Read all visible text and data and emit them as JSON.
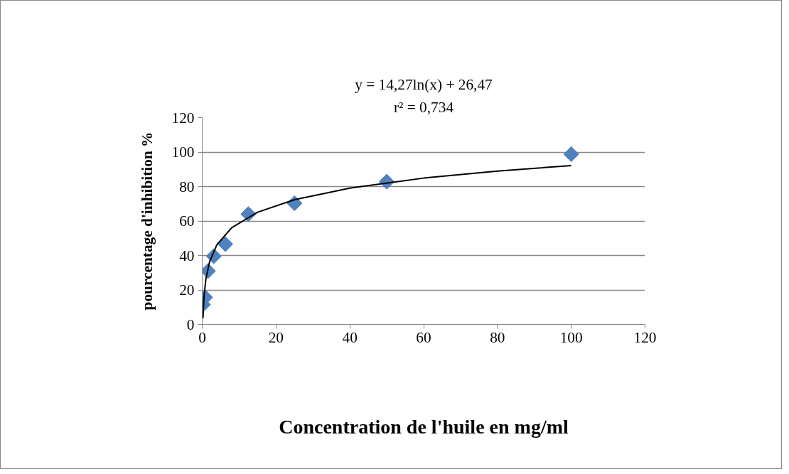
{
  "chart_data": {
    "type": "scatter",
    "xlabel": "Concentration de l'huile en mg/ml",
    "ylabel": "pourcentage d'inhibition %",
    "annotations": [
      "y = 14,27ln(x) + 26,47",
      "r² = 0,734"
    ],
    "series": [
      {
        "color": "#4f81bd",
        "marker": "diamond",
        "x": [
          0.2,
          0.78,
          1.56,
          3.125,
          6.25,
          12.5,
          25,
          50,
          100
        ],
        "values": [
          11.5,
          15.7,
          31,
          39.6,
          46.6,
          64,
          70.3,
          82.8,
          98.8
        ]
      },
      {
        "type": "line",
        "color": "#000000",
        "marker": "none",
        "x": [
          0.2,
          0.5,
          1,
          2,
          4,
          8,
          15,
          25,
          40,
          60,
          80,
          100
        ],
        "values": [
          3.5,
          16.6,
          26.5,
          36.4,
          46.3,
          56.1,
          65.1,
          72.4,
          79.1,
          84.9,
          89.0,
          92.2
        ]
      }
    ],
    "xlim": [
      0,
      120
    ],
    "xticks": [
      0,
      20,
      40,
      60,
      80,
      100,
      120
    ],
    "ylim": [
      0,
      120
    ],
    "yticks": [
      0,
      20,
      40,
      60,
      80,
      100,
      120
    ],
    "grid": "y"
  }
}
